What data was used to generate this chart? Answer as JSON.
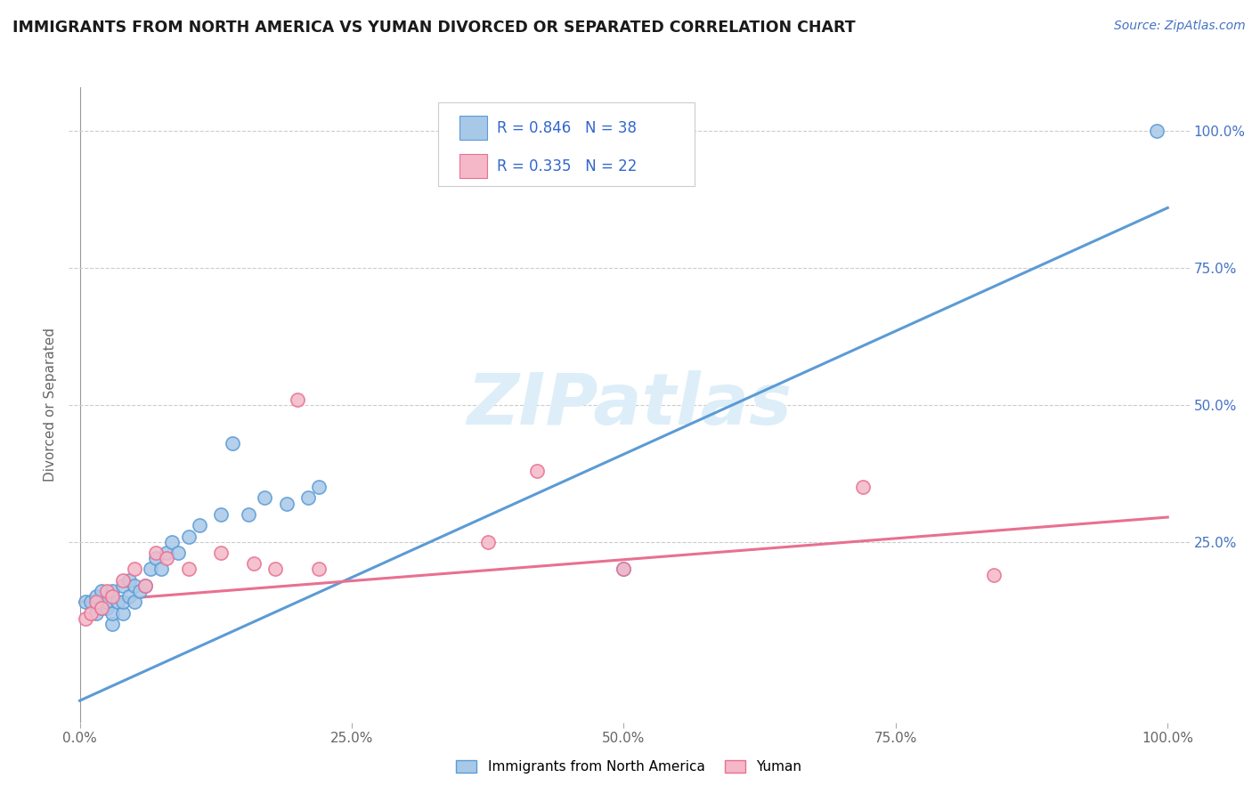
{
  "title": "IMMIGRANTS FROM NORTH AMERICA VS YUMAN DIVORCED OR SEPARATED CORRELATION CHART",
  "source_text": "Source: ZipAtlas.com",
  "ylabel": "Divorced or Separated",
  "legend_label1": "Immigrants from North America",
  "legend_label2": "Yuman",
  "R1": 0.846,
  "N1": 38,
  "R2": 0.335,
  "N2": 22,
  "xlim": [
    -0.01,
    1.02
  ],
  "ylim": [
    -0.08,
    1.08
  ],
  "xtick_vals": [
    0.0,
    0.25,
    0.5,
    0.75,
    1.0
  ],
  "xtick_labels": [
    "0.0%",
    "25.0%",
    "50.0%",
    "75.0%",
    "100.0%"
  ],
  "ytick_right_vals": [
    0.25,
    0.5,
    0.75,
    1.0
  ],
  "ytick_right_labels": [
    "25.0%",
    "50.0%",
    "75.0%",
    "100.0%"
  ],
  "color_blue": "#a8c8e8",
  "color_blue_line": "#5b9bd5",
  "color_pink": "#f4b8c8",
  "color_pink_line": "#e87090",
  "background_color": "#ffffff",
  "watermark_color": "#ddeef8",
  "blue_scatter_x": [
    0.005,
    0.01,
    0.015,
    0.015,
    0.02,
    0.02,
    0.025,
    0.025,
    0.03,
    0.03,
    0.03,
    0.035,
    0.04,
    0.04,
    0.04,
    0.045,
    0.045,
    0.05,
    0.05,
    0.055,
    0.06,
    0.065,
    0.07,
    0.075,
    0.08,
    0.085,
    0.09,
    0.1,
    0.11,
    0.13,
    0.14,
    0.155,
    0.17,
    0.19,
    0.21,
    0.22,
    0.5,
    0.99
  ],
  "blue_scatter_y": [
    0.14,
    0.14,
    0.12,
    0.15,
    0.13,
    0.16,
    0.13,
    0.14,
    0.1,
    0.12,
    0.16,
    0.14,
    0.12,
    0.14,
    0.17,
    0.15,
    0.18,
    0.14,
    0.17,
    0.16,
    0.17,
    0.2,
    0.22,
    0.2,
    0.23,
    0.25,
    0.23,
    0.26,
    0.28,
    0.3,
    0.43,
    0.3,
    0.33,
    0.32,
    0.33,
    0.35,
    0.2,
    1.0
  ],
  "pink_scatter_x": [
    0.005,
    0.01,
    0.015,
    0.02,
    0.025,
    0.03,
    0.04,
    0.05,
    0.06,
    0.07,
    0.08,
    0.1,
    0.13,
    0.16,
    0.18,
    0.2,
    0.22,
    0.375,
    0.42,
    0.5,
    0.72,
    0.84
  ],
  "pink_scatter_y": [
    0.11,
    0.12,
    0.14,
    0.13,
    0.16,
    0.15,
    0.18,
    0.2,
    0.17,
    0.23,
    0.22,
    0.2,
    0.23,
    0.21,
    0.2,
    0.51,
    0.2,
    0.25,
    0.38,
    0.2,
    0.35,
    0.19
  ],
  "blue_line_x0": 0.0,
  "blue_line_x1": 1.0,
  "blue_line_y0": -0.04,
  "blue_line_y1": 0.86,
  "pink_line_x0": 0.0,
  "pink_line_x1": 1.0,
  "pink_line_y0": 0.14,
  "pink_line_y1": 0.295
}
